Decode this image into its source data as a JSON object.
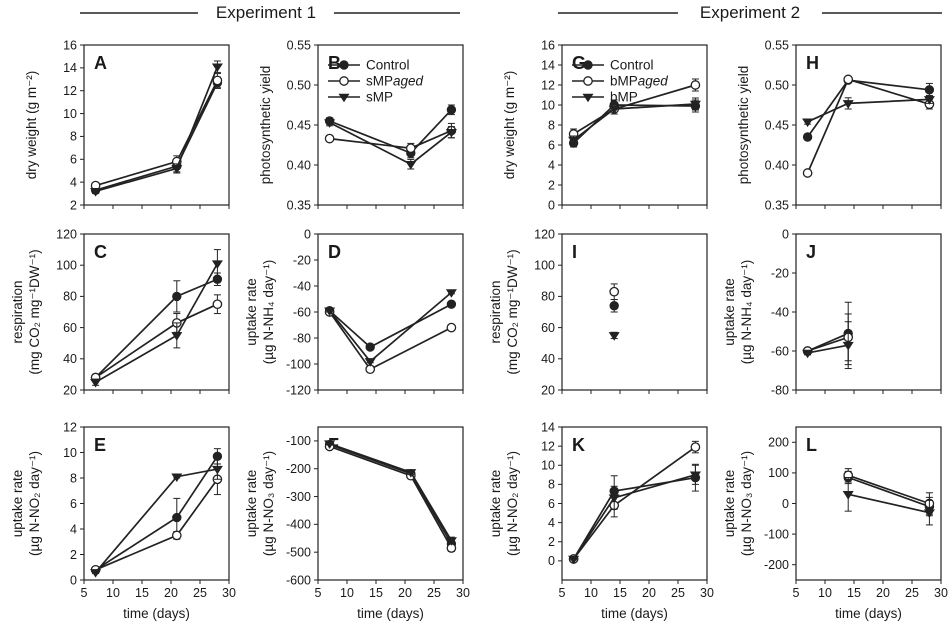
{
  "header": {
    "experiment_1": "Experiment 1",
    "experiment_2": "Experiment 2"
  },
  "chart_data": [
    {
      "id": "A",
      "type": "line",
      "ylabel": [
        "dry weight (g m⁻²)"
      ],
      "xlim": [
        5,
        30
      ],
      "ylim": [
        2,
        16
      ],
      "xticks": [
        5,
        10,
        15,
        20,
        25,
        30
      ],
      "yticks": [
        2,
        4,
        6,
        8,
        10,
        12,
        14,
        16
      ],
      "yticklabels": [
        "2",
        "4",
        "6",
        "8",
        "10",
        "12",
        "14",
        "16"
      ],
      "show_xticklabels": false,
      "xlabel": "",
      "series": [
        {
          "name": "Control",
          "marker": "filled-circle",
          "x": [
            7,
            21,
            28
          ],
          "y": [
            3.3,
            5.4,
            12.7
          ],
          "err": [
            0.2,
            0.5,
            0.5
          ]
        },
        {
          "name": "sMPaged",
          "marker": "open-circle",
          "x": [
            7,
            21,
            28
          ],
          "y": [
            3.7,
            5.8,
            12.9
          ],
          "err": [
            0.2,
            0.5,
            0.6
          ]
        },
        {
          "name": "sMP",
          "marker": "filled-triangle",
          "x": [
            7,
            21,
            28
          ],
          "y": [
            3.2,
            5.2,
            14.1
          ],
          "err": [
            0.2,
            0.4,
            0.5
          ]
        }
      ]
    },
    {
      "id": "B",
      "type": "line",
      "ylabel": [
        "photosynthetic yield"
      ],
      "xlim": [
        5,
        30
      ],
      "ylim": [
        0.35,
        0.55
      ],
      "xticks": [
        5,
        10,
        15,
        20,
        25,
        30
      ],
      "yticks": [
        0.35,
        0.4,
        0.45,
        0.5,
        0.55
      ],
      "yticklabels": [
        "0.35",
        "0.40",
        "0.45",
        "0.50",
        "0.55"
      ],
      "show_xticklabels": false,
      "xlabel": "",
      "legend": {
        "position": "top-left",
        "entries": [
          {
            "marker": "filled-circle",
            "label": "Control"
          },
          {
            "marker": "open-circle",
            "label": "sMP",
            "italic_suffix": "aged"
          },
          {
            "marker": "filled-triangle",
            "label": "sMP"
          }
        ]
      },
      "series": [
        {
          "name": "Control",
          "marker": "filled-circle",
          "x": [
            7,
            21,
            28
          ],
          "y": [
            0.455,
            0.415,
            0.469
          ],
          "err": [
            0.004,
            0.006,
            0.006
          ]
        },
        {
          "name": "sMPaged",
          "marker": "open-circle",
          "x": [
            7,
            21,
            28
          ],
          "y": [
            0.433,
            0.421,
            0.443
          ],
          "err": [
            0.003,
            0.006,
            0.009
          ]
        },
        {
          "name": "sMP",
          "marker": "filled-triangle",
          "x": [
            7,
            21,
            28
          ],
          "y": [
            0.453,
            0.401,
            0.441
          ],
          "err": [
            0.004,
            0.006,
            0.007
          ]
        }
      ]
    },
    {
      "id": "C",
      "type": "line",
      "ylabel": [
        "respiration",
        "(mg CO₂ mg⁻¹DW⁻¹)"
      ],
      "xlim": [
        5,
        30
      ],
      "ylim": [
        20,
        120
      ],
      "xticks": [
        5,
        10,
        15,
        20,
        25,
        30
      ],
      "yticks": [
        20,
        40,
        60,
        80,
        100,
        120
      ],
      "yticklabels": [
        "20",
        "40",
        "60",
        "80",
        "100",
        "120"
      ],
      "show_xticklabels": false,
      "xlabel": "",
      "series": [
        {
          "name": "Control",
          "marker": "filled-circle",
          "x": [
            7,
            21,
            28
          ],
          "y": [
            28,
            80,
            91
          ],
          "err": [
            2,
            10,
            4
          ]
        },
        {
          "name": "sMPaged",
          "marker": "open-circle",
          "x": [
            7,
            21,
            28
          ],
          "y": [
            28,
            63,
            75
          ],
          "err": [
            2,
            6,
            6
          ]
        },
        {
          "name": "sMP",
          "marker": "filled-triangle",
          "x": [
            7,
            21,
            28
          ],
          "y": [
            25,
            55,
            101
          ],
          "err": [
            2,
            8,
            9
          ]
        }
      ]
    },
    {
      "id": "D",
      "type": "line",
      "ylabel": [
        "uptake rate",
        "(µg N-NH₄ day⁻¹)"
      ],
      "xlim": [
        5,
        30
      ],
      "ylim": [
        -120,
        0
      ],
      "xticks": [
        5,
        10,
        15,
        20,
        25,
        30
      ],
      "yticks": [
        -120,
        -100,
        -80,
        -60,
        -40,
        -20,
        0
      ],
      "yticklabels": [
        "-120",
        "-100",
        "-80",
        "-60",
        "-40",
        "-20",
        "0"
      ],
      "show_xticklabels": false,
      "xlabel": "",
      "series": [
        {
          "name": "Control",
          "marker": "filled-circle",
          "x": [
            7,
            14,
            28
          ],
          "y": [
            -59,
            -87,
            -54
          ],
          "err": [
            1,
            1,
            1
          ]
        },
        {
          "name": "sMPaged",
          "marker": "open-circle",
          "x": [
            7,
            14,
            28
          ],
          "y": [
            -60,
            -104,
            -72
          ],
          "err": [
            1,
            1,
            1
          ]
        },
        {
          "name": "sMP",
          "marker": "filled-triangle",
          "x": [
            7,
            14,
            28
          ],
          "y": [
            -59,
            -98,
            -45
          ],
          "err": [
            1,
            1,
            1
          ]
        }
      ]
    },
    {
      "id": "E",
      "type": "line",
      "ylabel": [
        "uptake rate",
        "(µg N-NO₂ day⁻¹)"
      ],
      "xlim": [
        5,
        30
      ],
      "ylim": [
        0,
        12
      ],
      "xticks": [
        5,
        10,
        15,
        20,
        25,
        30
      ],
      "yticks": [
        0,
        2,
        4,
        6,
        8,
        10,
        12
      ],
      "yticklabels": [
        "0",
        "2",
        "4",
        "6",
        "8",
        "10",
        "12"
      ],
      "show_xticklabels": true,
      "xlabel": "time (days)",
      "series": [
        {
          "name": "Control",
          "marker": "filled-circle",
          "x": [
            7,
            21,
            28
          ],
          "y": [
            0.8,
            4.9,
            9.7
          ],
          "err": [
            0.1,
            1.5,
            0.6
          ]
        },
        {
          "name": "sMPaged",
          "marker": "open-circle",
          "x": [
            7,
            21,
            28
          ],
          "y": [
            0.8,
            3.5,
            7.9
          ],
          "err": [
            0.1,
            0.3,
            1.2
          ]
        },
        {
          "name": "sMP",
          "marker": "filled-triangle",
          "x": [
            7,
            21,
            28
          ],
          "y": [
            0.6,
            8.1,
            8.7
          ],
          "err": [
            0.1,
            0.1,
            0.8
          ]
        }
      ]
    },
    {
      "id": "F",
      "type": "line",
      "ylabel": [
        "uptake rate",
        "(µg N-NO₃ day⁻¹)"
      ],
      "xlim": [
        5,
        30
      ],
      "ylim": [
        -600,
        -50
      ],
      "xticks": [
        5,
        10,
        15,
        20,
        25,
        30
      ],
      "yticks": [
        -600,
        -500,
        -400,
        -300,
        -200,
        -100
      ],
      "yticklabels": [
        "-600",
        "-500",
        "-400",
        "-300",
        "-200",
        "-100"
      ],
      "show_xticklabels": true,
      "xlabel": "time (days)",
      "series": [
        {
          "name": "Control",
          "marker": "filled-circle",
          "x": [
            7,
            21,
            28
          ],
          "y": [
            -113,
            -218,
            -470
          ],
          "err": [
            4,
            8,
            12
          ]
        },
        {
          "name": "sMPaged",
          "marker": "open-circle",
          "x": [
            7,
            21,
            28
          ],
          "y": [
            -120,
            -225,
            -485
          ],
          "err": [
            4,
            8,
            12
          ]
        },
        {
          "name": "sMP",
          "marker": "filled-triangle",
          "x": [
            7,
            21,
            28
          ],
          "y": [
            -110,
            -213,
            -458
          ],
          "err": [
            4,
            8,
            12
          ]
        }
      ]
    },
    {
      "id": "G",
      "type": "line",
      "ylabel": [
        "dry weight (g m⁻²)"
      ],
      "xlim": [
        5,
        30
      ],
      "ylim": [
        0,
        16
      ],
      "xticks": [
        5,
        10,
        15,
        20,
        25,
        30
      ],
      "yticks": [
        0,
        2,
        4,
        6,
        8,
        10,
        12,
        14,
        16
      ],
      "yticklabels": [
        "0",
        "2",
        "4",
        "6",
        "8",
        "10",
        "12",
        "14",
        "16"
      ],
      "show_xticklabels": false,
      "xlabel": "",
      "legend": {
        "position": "top-left",
        "entries": [
          {
            "marker": "filled-circle",
            "label": "Control"
          },
          {
            "marker": "open-circle",
            "label": "bMP",
            "italic_suffix": "aged"
          },
          {
            "marker": "filled-triangle",
            "label": "bMP"
          }
        ]
      },
      "series": [
        {
          "name": "Control",
          "marker": "filled-circle",
          "x": [
            7,
            14,
            28
          ],
          "y": [
            6.2,
            10.0,
            9.9
          ],
          "err": [
            0.4,
            0.5,
            0.6
          ]
        },
        {
          "name": "bMPaged",
          "marker": "open-circle",
          "x": [
            7,
            14,
            28
          ],
          "y": [
            7.1,
            9.6,
            12.0
          ],
          "err": [
            0.5,
            0.5,
            0.6
          ]
        },
        {
          "name": "bMP",
          "marker": "filled-triangle",
          "x": [
            7,
            14,
            28
          ],
          "y": [
            6.5,
            9.6,
            10.1
          ],
          "err": [
            0.4,
            0.5,
            0.6
          ]
        }
      ]
    },
    {
      "id": "H",
      "type": "line",
      "ylabel": [
        "photosynthetic yield"
      ],
      "xlim": [
        5,
        30
      ],
      "ylim": [
        0.35,
        0.55
      ],
      "xticks": [
        5,
        10,
        15,
        20,
        25,
        30
      ],
      "yticks": [
        0.35,
        0.4,
        0.45,
        0.5,
        0.55
      ],
      "yticklabels": [
        "0.35",
        "0.40",
        "0.45",
        "0.50",
        "0.55"
      ],
      "show_xticklabels": false,
      "xlabel": "",
      "series": [
        {
          "name": "Control",
          "marker": "filled-circle",
          "x": [
            7,
            14,
            28
          ],
          "y": [
            0.435,
            0.506,
            0.494
          ],
          "err": [
            0.003,
            0.003,
            0.008
          ]
        },
        {
          "name": "bMPaged",
          "marker": "open-circle",
          "x": [
            7,
            14,
            28
          ],
          "y": [
            0.39,
            0.507,
            0.476
          ],
          "err": [
            0.003,
            0.003,
            0.006
          ]
        },
        {
          "name": "bMP",
          "marker": "filled-triangle",
          "x": [
            7,
            14,
            28
          ],
          "y": [
            0.454,
            0.477,
            0.482
          ],
          "err": [
            0.003,
            0.007,
            0.005
          ]
        }
      ]
    },
    {
      "id": "I",
      "type": "scatter",
      "ylabel": [
        "respiration",
        "(mg CO₂ mg⁻¹DW⁻¹)"
      ],
      "xlim": [
        5,
        30
      ],
      "ylim": [
        20,
        120
      ],
      "xticks": [
        5,
        10,
        15,
        20,
        25,
        30
      ],
      "yticks": [
        20,
        40,
        60,
        80,
        100,
        120
      ],
      "yticklabels": [
        "20",
        "40",
        "60",
        "80",
        "100",
        "120"
      ],
      "show_xticklabels": false,
      "xlabel": "",
      "series": [
        {
          "name": "Control",
          "marker": "filled-circle",
          "x": [
            14
          ],
          "y": [
            74
          ],
          "err": [
            4
          ]
        },
        {
          "name": "bMPaged",
          "marker": "open-circle",
          "x": [
            14
          ],
          "y": [
            83
          ],
          "err": [
            5
          ]
        },
        {
          "name": "bMP",
          "marker": "filled-triangle",
          "x": [
            14
          ],
          "y": [
            55
          ],
          "err": [
            2
          ]
        }
      ]
    },
    {
      "id": "J",
      "type": "line",
      "ylabel": [
        "uptake rate",
        "(µg N-NH₄ day⁻¹)"
      ],
      "xlim": [
        5,
        30
      ],
      "ylim": [
        -80,
        0
      ],
      "xticks": [
        5,
        10,
        15,
        20,
        25,
        30
      ],
      "yticks": [
        -80,
        -60,
        -40,
        -20,
        0
      ],
      "yticklabels": [
        "-80",
        "-60",
        "-40",
        "-20",
        "0"
      ],
      "show_xticklabels": false,
      "xlabel": "",
      "series": [
        {
          "name": "Control",
          "marker": "filled-circle",
          "x": [
            7,
            14
          ],
          "y": [
            -60,
            -51
          ],
          "err": [
            1,
            16
          ]
        },
        {
          "name": "bMPaged",
          "marker": "open-circle",
          "x": [
            7,
            14
          ],
          "y": [
            -60,
            -53
          ],
          "err": [
            1,
            12
          ]
        },
        {
          "name": "bMP",
          "marker": "filled-triangle",
          "x": [
            7,
            14
          ],
          "y": [
            -61,
            -57
          ],
          "err": [
            1,
            12
          ]
        }
      ]
    },
    {
      "id": "K",
      "type": "line",
      "ylabel": [
        "uptake rate",
        "(µg N-NO₂ day⁻¹)"
      ],
      "xlim": [
        5,
        30
      ],
      "ylim": [
        -2,
        14
      ],
      "xticks": [
        5,
        10,
        15,
        20,
        25,
        30
      ],
      "yticks": [
        0,
        2,
        4,
        6,
        8,
        10,
        12,
        14
      ],
      "yticklabels": [
        "0",
        "2",
        "4",
        "6",
        "8",
        "10",
        "12",
        "14"
      ],
      "show_xticklabels": true,
      "xlabel": "time (days)",
      "series": [
        {
          "name": "Control",
          "marker": "filled-circle",
          "x": [
            7,
            14,
            28
          ],
          "y": [
            0.2,
            7.3,
            8.7
          ],
          "err": [
            0.1,
            1.6,
            1.4
          ]
        },
        {
          "name": "bMPaged",
          "marker": "open-circle",
          "x": [
            7,
            14,
            28
          ],
          "y": [
            0.2,
            5.8,
            11.9
          ],
          "err": [
            0.1,
            1.2,
            0.6
          ]
        },
        {
          "name": "bMP",
          "marker": "filled-triangle",
          "x": [
            7,
            14,
            28
          ],
          "y": [
            0.2,
            6.6,
            9.0
          ],
          "err": [
            0.1,
            1.2,
            1.0
          ]
        }
      ]
    },
    {
      "id": "L",
      "type": "line",
      "ylabel": [
        "uptake rate",
        "(µg N-NO₃ day⁻¹)"
      ],
      "xlim": [
        5,
        30
      ],
      "ylim": [
        -250,
        250
      ],
      "xticks": [
        5,
        10,
        15,
        20,
        25,
        30
      ],
      "yticks": [
        -200,
        -100,
        0,
        100,
        200
      ],
      "yticklabels": [
        "-200",
        "-100",
        "0",
        "100",
        "200"
      ],
      "show_xticklabels": true,
      "xlabel": "time (days)",
      "series": [
        {
          "name": "Control",
          "marker": "filled-circle",
          "x": [
            14,
            28
          ],
          "y": [
            85,
            -10
          ],
          "err": [
            20,
            30
          ]
        },
        {
          "name": "bMPaged",
          "marker": "open-circle",
          "x": [
            14,
            28
          ],
          "y": [
            92,
            0
          ],
          "err": [
            22,
            35
          ]
        },
        {
          "name": "bMP",
          "marker": "filled-triangle",
          "x": [
            14,
            28
          ],
          "y": [
            30,
            -30
          ],
          "err": [
            55,
            40
          ]
        }
      ]
    }
  ]
}
